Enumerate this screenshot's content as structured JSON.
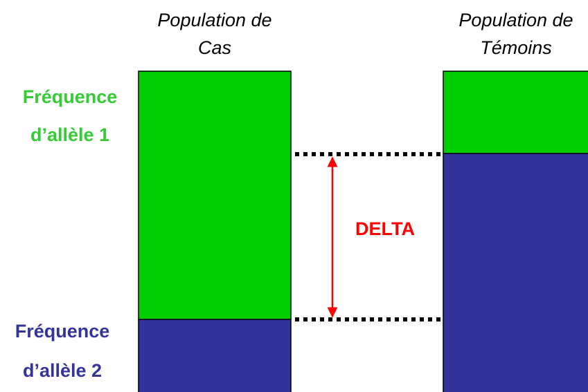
{
  "columns": [
    {
      "title_lines": [
        "Population de",
        "Cas"
      ]
    },
    {
      "title_lines": [
        "Population de",
        "Témoins"
      ]
    }
  ],
  "labels": {
    "allele1": [
      "Fréquence",
      "d’allèle 1"
    ],
    "allele2": [
      "Fréquence",
      "d’allèle 2"
    ],
    "delta": "DELTA"
  }
}
